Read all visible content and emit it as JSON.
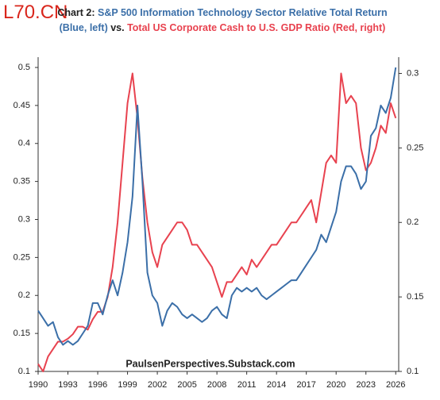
{
  "watermark": "L70.CN",
  "chart_data": {
    "type": "line",
    "title_prefix": "Chart 2:",
    "title_joiner": "vs.",
    "annotation": "PaulsenPerspectives.Substack.com",
    "x": [
      1990,
      1990.5,
      1991,
      1991.5,
      1992,
      1992.5,
      1993,
      1993.5,
      1994,
      1994.5,
      1995,
      1995.5,
      1996,
      1996.5,
      1997,
      1997.5,
      1998,
      1998.5,
      1999,
      1999.5,
      2000,
      2000.5,
      2001,
      2001.5,
      2002,
      2002.5,
      2003,
      2003.5,
      2004,
      2004.5,
      2005,
      2005.5,
      2006,
      2006.5,
      2007,
      2007.5,
      2008,
      2008.5,
      2009,
      2009.5,
      2010,
      2010.5,
      2011,
      2011.5,
      2012,
      2012.5,
      2013,
      2013.5,
      2014,
      2014.5,
      2015,
      2015.5,
      2016,
      2016.5,
      2017,
      2017.5,
      2018,
      2018.5,
      2019,
      2019.5,
      2020,
      2020.5,
      2021,
      2021.5,
      2022,
      2022.5,
      2023,
      2023.5,
      2024,
      2024.5,
      2025,
      2025.5,
      2026
    ],
    "series": [
      {
        "name": "S&P 500 Information Technology Sector Relative Total Return (Blue, left)",
        "color": "#3b6fa8",
        "axis": "y",
        "values": [
          0.18,
          0.17,
          0.16,
          0.165,
          0.145,
          0.135,
          0.14,
          0.135,
          0.14,
          0.15,
          0.16,
          0.19,
          0.19,
          0.175,
          0.2,
          0.22,
          0.2,
          0.23,
          0.27,
          0.33,
          0.45,
          0.35,
          0.23,
          0.2,
          0.19,
          0.16,
          0.18,
          0.19,
          0.185,
          0.175,
          0.17,
          0.175,
          0.17,
          0.165,
          0.17,
          0.18,
          0.185,
          0.175,
          0.17,
          0.2,
          0.21,
          0.205,
          0.21,
          0.205,
          0.21,
          0.2,
          0.195,
          0.2,
          0.205,
          0.21,
          0.215,
          0.22,
          0.22,
          0.23,
          0.24,
          0.25,
          0.26,
          0.28,
          0.27,
          0.29,
          0.31,
          0.35,
          0.37,
          0.37,
          0.36,
          0.34,
          0.35,
          0.41,
          0.42,
          0.45,
          0.44,
          0.46,
          0.5
        ]
      },
      {
        "name": "Total US Corporate Cash to U.S. GDP Ratio (Red, right)",
        "color": "#e8424f",
        "axis": "y2",
        "values": [
          0.105,
          0.1,
          0.11,
          0.115,
          0.12,
          0.12,
          0.122,
          0.125,
          0.13,
          0.13,
          0.128,
          0.135,
          0.14,
          0.14,
          0.15,
          0.17,
          0.2,
          0.24,
          0.28,
          0.3,
          0.27,
          0.23,
          0.2,
          0.18,
          0.17,
          0.185,
          0.19,
          0.195,
          0.2,
          0.2,
          0.195,
          0.185,
          0.185,
          0.18,
          0.175,
          0.17,
          0.16,
          0.15,
          0.16,
          0.16,
          0.165,
          0.17,
          0.165,
          0.175,
          0.17,
          0.175,
          0.18,
          0.185,
          0.185,
          0.19,
          0.195,
          0.2,
          0.2,
          0.205,
          0.21,
          0.215,
          0.2,
          0.22,
          0.24,
          0.245,
          0.24,
          0.3,
          0.28,
          0.285,
          0.28,
          0.25,
          0.235,
          0.24,
          0.25,
          0.265,
          0.26,
          0.28,
          0.27
        ]
      }
    ],
    "xlim": [
      1990,
      2026.3
    ],
    "xticks": [
      1990,
      1993,
      1996,
      1999,
      2002,
      2005,
      2008,
      2011,
      2014,
      2017,
      2020,
      2023,
      2026
    ],
    "ylim": [
      0.1,
      0.5
    ],
    "yticks": [
      0.1,
      0.15,
      0.2,
      0.25,
      0.3,
      0.35,
      0.4,
      0.45,
      0.5
    ],
    "y2lim": [
      0.1,
      0.304
    ],
    "y2ticks": [
      0.1,
      0.15,
      0.2,
      0.25,
      0.3
    ]
  }
}
